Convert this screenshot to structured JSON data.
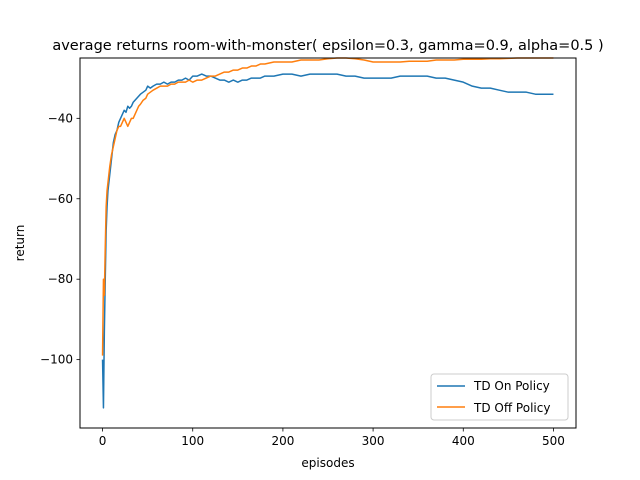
{
  "chart_data": {
    "type": "line",
    "title": "average returns room-with-monster( epsilon=0.3, gamma=0.9, alpha=0.5 )",
    "xlabel": "episodes",
    "ylabel": "return",
    "xlim": [
      -25,
      525
    ],
    "ylim": [
      -117,
      -25
    ],
    "xticks": [
      0,
      100,
      200,
      300,
      400,
      500
    ],
    "yticks": [
      -100,
      -80,
      -60,
      -40
    ],
    "grid": false,
    "legend_position": "lower right",
    "series": [
      {
        "name": "TD On Policy",
        "color": "#1f77b4",
        "x": [
          0,
          1,
          2,
          3,
          4,
          5,
          6,
          7,
          8,
          10,
          12,
          14,
          16,
          18,
          20,
          22,
          24,
          26,
          28,
          30,
          32,
          34,
          36,
          38,
          40,
          42,
          45,
          48,
          50,
          53,
          56,
          60,
          64,
          68,
          72,
          76,
          80,
          84,
          88,
          92,
          96,
          100,
          105,
          110,
          115,
          120,
          125,
          130,
          135,
          140,
          145,
          150,
          155,
          160,
          165,
          170,
          175,
          180,
          190,
          200,
          210,
          220,
          230,
          240,
          250,
          260,
          270,
          280,
          290,
          300,
          310,
          320,
          330,
          340,
          350,
          360,
          370,
          380,
          390,
          400,
          410,
          420,
          430,
          440,
          450,
          460,
          470,
          480,
          490,
          500
        ],
        "values": [
          -100,
          -112,
          -93,
          -80,
          -68,
          -62,
          -58,
          -56,
          -54,
          -50,
          -46,
          -44,
          -43,
          -41,
          -40,
          -39,
          -38,
          -38.5,
          -37,
          -37.5,
          -37,
          -36,
          -35.5,
          -35,
          -34.5,
          -34,
          -33.5,
          -33,
          -32,
          -32.5,
          -32,
          -31.5,
          -31.5,
          -31,
          -31.5,
          -31,
          -31,
          -30.5,
          -30.5,
          -30,
          -30.5,
          -29.5,
          -29.5,
          -29,
          -29.5,
          -29.5,
          -30,
          -30.5,
          -30.5,
          -31,
          -30.5,
          -31,
          -30.5,
          -30.5,
          -30,
          -30,
          -30,
          -29.5,
          -29.5,
          -29,
          -29,
          -29.5,
          -29,
          -29,
          -29,
          -29,
          -29.5,
          -29.5,
          -30,
          -30,
          -30,
          -30,
          -29.5,
          -29.5,
          -29.5,
          -29.5,
          -30,
          -30,
          -30.5,
          -31,
          -32,
          -32.5,
          -32.5,
          -33,
          -33.5,
          -33.5,
          -33.5,
          -34,
          -34,
          -34
        ]
      },
      {
        "name": "TD Off Policy",
        "color": "#ff7f0e",
        "x": [
          0,
          1,
          2,
          3,
          4,
          5,
          6,
          7,
          8,
          10,
          12,
          14,
          16,
          18,
          20,
          22,
          24,
          26,
          28,
          30,
          32,
          34,
          36,
          38,
          40,
          42,
          45,
          48,
          50,
          53,
          56,
          60,
          64,
          68,
          72,
          76,
          80,
          84,
          88,
          92,
          96,
          100,
          105,
          110,
          115,
          120,
          125,
          130,
          135,
          140,
          145,
          150,
          155,
          160,
          165,
          170,
          175,
          180,
          190,
          200,
          210,
          220,
          230,
          240,
          250,
          260,
          270,
          280,
          290,
          300,
          310,
          320,
          330,
          340,
          350,
          360,
          370,
          380,
          390,
          400,
          410,
          420,
          430,
          440,
          450,
          460,
          470,
          480,
          490,
          500
        ],
        "values": [
          -99,
          -80,
          -84,
          -72,
          -62,
          -58,
          -56,
          -54,
          -52,
          -49,
          -47,
          -45,
          -43,
          -42,
          -42,
          -41,
          -40,
          -41,
          -42,
          -41,
          -40,
          -40,
          -39,
          -38,
          -37,
          -36.5,
          -35.5,
          -35,
          -34,
          -33.5,
          -33,
          -32.5,
          -32,
          -32,
          -32,
          -31.5,
          -31.5,
          -31,
          -31,
          -31,
          -30.5,
          -31,
          -30.5,
          -30.5,
          -30,
          -29.5,
          -29.5,
          -29,
          -28.5,
          -28.5,
          -28,
          -28,
          -27.5,
          -27.5,
          -27,
          -27,
          -26.5,
          -26.5,
          -26,
          -26,
          -26,
          -25.5,
          -25.5,
          -25.5,
          -25.2,
          -25,
          -25,
          -25.2,
          -25.5,
          -26,
          -26,
          -26,
          -26,
          -25.8,
          -25.8,
          -25.8,
          -25.5,
          -25.5,
          -25.5,
          -25.3,
          -25.3,
          -25.3,
          -25.2,
          -25.2,
          -25.1,
          -25,
          -25,
          -25,
          -25,
          -25
        ]
      }
    ]
  }
}
